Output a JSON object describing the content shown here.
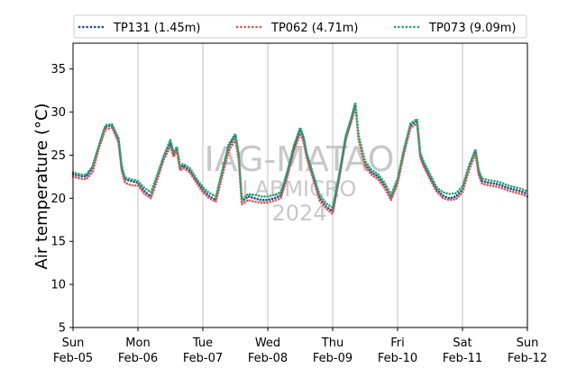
{
  "chart_data": {
    "type": "line",
    "title": "",
    "xlabel": "",
    "ylabel": "Air temperature (°C)",
    "ylim": [
      5,
      38
    ],
    "yticks": [
      5,
      10,
      15,
      20,
      25,
      30,
      35
    ],
    "xlim": [
      "2023-02-05",
      "2023-02-12"
    ],
    "xticks": [
      {
        "day": "Sun",
        "date": "Feb-05"
      },
      {
        "day": "Mon",
        "date": "Feb-06"
      },
      {
        "day": "Tue",
        "date": "Feb-07"
      },
      {
        "day": "Wed",
        "date": "Feb-08"
      },
      {
        "day": "Thu",
        "date": "Feb-09"
      },
      {
        "day": "Fri",
        "date": "Feb-10"
      },
      {
        "day": "Sat",
        "date": "Feb-11"
      },
      {
        "day": "Sun",
        "date": "Feb-12"
      }
    ],
    "grid": "x-major",
    "legend_position": "top",
    "x_unit": "days since Feb-05 00:00",
    "series": [
      {
        "name": "TP131 (1.45m)",
        "color": "#1f4e8c",
        "points": [
          [
            0,
            22.8
          ],
          [
            0.1,
            22.6
          ],
          [
            0.2,
            22.5
          ],
          [
            0.3,
            23.5
          ],
          [
            0.4,
            26.0
          ],
          [
            0.5,
            28.3
          ],
          [
            0.6,
            28.5
          ],
          [
            0.7,
            26.8
          ],
          [
            0.75,
            23.5
          ],
          [
            0.8,
            22.2
          ],
          [
            0.9,
            22.0
          ],
          [
            1.0,
            21.8
          ],
          [
            1.1,
            20.8
          ],
          [
            1.2,
            20.2
          ],
          [
            1.3,
            22.5
          ],
          [
            1.4,
            24.8
          ],
          [
            1.5,
            26.5
          ],
          [
            1.55,
            25.0
          ],
          [
            1.6,
            25.8
          ],
          [
            1.65,
            23.5
          ],
          [
            1.7,
            23.8
          ],
          [
            1.8,
            23.2
          ],
          [
            1.9,
            22.0
          ],
          [
            2.0,
            21.0
          ],
          [
            2.1,
            20.2
          ],
          [
            2.2,
            19.8
          ],
          [
            2.3,
            23.0
          ],
          [
            2.4,
            26.0
          ],
          [
            2.5,
            27.3
          ],
          [
            2.55,
            25.0
          ],
          [
            2.6,
            19.6
          ],
          [
            2.7,
            20.2
          ],
          [
            2.8,
            20.0
          ],
          [
            2.9,
            19.8
          ],
          [
            3.0,
            19.8
          ],
          [
            3.1,
            20.0
          ],
          [
            3.2,
            20.3
          ],
          [
            3.3,
            22.8
          ],
          [
            3.4,
            25.8
          ],
          [
            3.5,
            28.0
          ],
          [
            3.55,
            27.0
          ],
          [
            3.6,
            25.0
          ],
          [
            3.7,
            22.5
          ],
          [
            3.8,
            20.0
          ],
          [
            3.9,
            19.0
          ],
          [
            4.0,
            18.5
          ],
          [
            4.1,
            22.5
          ],
          [
            4.2,
            27.0
          ],
          [
            4.3,
            29.5
          ],
          [
            4.35,
            31.0
          ],
          [
            4.4,
            27.0
          ],
          [
            4.5,
            24.0
          ],
          [
            4.6,
            23.0
          ],
          [
            4.7,
            22.5
          ],
          [
            4.8,
            21.5
          ],
          [
            4.9,
            20.0
          ],
          [
            5.0,
            22.0
          ],
          [
            5.1,
            25.5
          ],
          [
            5.2,
            28.5
          ],
          [
            5.3,
            29.0
          ],
          [
            5.35,
            25.0
          ],
          [
            5.4,
            24.0
          ],
          [
            5.5,
            22.5
          ],
          [
            5.6,
            21.0
          ],
          [
            5.7,
            20.3
          ],
          [
            5.8,
            20.0
          ],
          [
            5.9,
            20.2
          ],
          [
            6.0,
            21.0
          ],
          [
            6.1,
            23.5
          ],
          [
            6.2,
            25.5
          ],
          [
            6.25,
            23.0
          ],
          [
            6.3,
            22.0
          ],
          [
            6.4,
            21.8
          ],
          [
            6.5,
            21.7
          ],
          [
            6.6,
            21.5
          ],
          [
            6.7,
            21.2
          ],
          [
            6.8,
            21.0
          ],
          [
            6.9,
            20.8
          ],
          [
            7.0,
            20.5
          ]
        ]
      },
      {
        "name": "TP062 (4.71m)",
        "color": "#d9585e",
        "points": [
          [
            0,
            22.5
          ],
          [
            0.1,
            22.3
          ],
          [
            0.2,
            22.2
          ],
          [
            0.3,
            23.0
          ],
          [
            0.4,
            25.8
          ],
          [
            0.5,
            28.0
          ],
          [
            0.6,
            28.2
          ],
          [
            0.7,
            26.5
          ],
          [
            0.75,
            23.2
          ],
          [
            0.8,
            21.8
          ],
          [
            0.9,
            21.5
          ],
          [
            1.0,
            21.5
          ],
          [
            1.1,
            20.5
          ],
          [
            1.2,
            20.0
          ],
          [
            1.3,
            22.2
          ],
          [
            1.4,
            24.5
          ],
          [
            1.5,
            26.0
          ],
          [
            1.55,
            24.8
          ],
          [
            1.6,
            25.5
          ],
          [
            1.65,
            23.2
          ],
          [
            1.7,
            23.5
          ],
          [
            1.8,
            23.0
          ],
          [
            1.9,
            21.8
          ],
          [
            2.0,
            20.7
          ],
          [
            2.1,
            20.0
          ],
          [
            2.2,
            19.6
          ],
          [
            2.3,
            22.6
          ],
          [
            2.4,
            25.5
          ],
          [
            2.5,
            26.8
          ],
          [
            2.55,
            24.5
          ],
          [
            2.6,
            19.3
          ],
          [
            2.7,
            19.8
          ],
          [
            2.8,
            19.6
          ],
          [
            2.9,
            19.5
          ],
          [
            3.0,
            19.5
          ],
          [
            3.1,
            19.7
          ],
          [
            3.2,
            20.0
          ],
          [
            3.3,
            22.4
          ],
          [
            3.4,
            25.4
          ],
          [
            3.5,
            27.5
          ],
          [
            3.55,
            26.5
          ],
          [
            3.6,
            24.7
          ],
          [
            3.7,
            22.2
          ],
          [
            3.8,
            19.7
          ],
          [
            3.9,
            18.8
          ],
          [
            4.0,
            18.2
          ],
          [
            4.1,
            22.2
          ],
          [
            4.2,
            26.7
          ],
          [
            4.3,
            29.2
          ],
          [
            4.35,
            30.6
          ],
          [
            4.4,
            26.7
          ],
          [
            4.5,
            23.7
          ],
          [
            4.6,
            22.7
          ],
          [
            4.7,
            22.2
          ],
          [
            4.8,
            21.2
          ],
          [
            4.9,
            19.8
          ],
          [
            5.0,
            21.7
          ],
          [
            5.1,
            25.2
          ],
          [
            5.2,
            28.2
          ],
          [
            5.3,
            28.7
          ],
          [
            5.35,
            24.7
          ],
          [
            5.4,
            23.7
          ],
          [
            5.5,
            22.2
          ],
          [
            5.6,
            20.8
          ],
          [
            5.7,
            20.0
          ],
          [
            5.8,
            19.8
          ],
          [
            5.9,
            19.9
          ],
          [
            6.0,
            20.7
          ],
          [
            6.1,
            23.2
          ],
          [
            6.2,
            25.2
          ],
          [
            6.25,
            22.7
          ],
          [
            6.3,
            21.7
          ],
          [
            6.4,
            21.5
          ],
          [
            6.5,
            21.4
          ],
          [
            6.6,
            21.2
          ],
          [
            6.7,
            20.9
          ],
          [
            6.8,
            20.7
          ],
          [
            6.9,
            20.5
          ],
          [
            7.0,
            20.2
          ]
        ]
      },
      {
        "name": "TP073 (9.09m)",
        "color": "#2ca86b",
        "points": [
          [
            0,
            23.0
          ],
          [
            0.1,
            22.8
          ],
          [
            0.2,
            22.7
          ],
          [
            0.3,
            23.7
          ],
          [
            0.4,
            26.2
          ],
          [
            0.5,
            28.5
          ],
          [
            0.6,
            28.6
          ],
          [
            0.7,
            27.0
          ],
          [
            0.75,
            23.8
          ],
          [
            0.8,
            22.4
          ],
          [
            0.9,
            22.2
          ],
          [
            1.0,
            22.0
          ],
          [
            1.1,
            21.2
          ],
          [
            1.2,
            20.7
          ],
          [
            1.3,
            22.8
          ],
          [
            1.4,
            25.0
          ],
          [
            1.5,
            26.8
          ],
          [
            1.55,
            25.3
          ],
          [
            1.6,
            26.0
          ],
          [
            1.65,
            23.8
          ],
          [
            1.7,
            24.0
          ],
          [
            1.8,
            23.5
          ],
          [
            1.9,
            22.3
          ],
          [
            2.0,
            21.3
          ],
          [
            2.1,
            20.6
          ],
          [
            2.2,
            20.2
          ],
          [
            2.3,
            23.3
          ],
          [
            2.4,
            26.3
          ],
          [
            2.5,
            27.5
          ],
          [
            2.55,
            25.3
          ],
          [
            2.6,
            19.9
          ],
          [
            2.7,
            20.5
          ],
          [
            2.8,
            20.4
          ],
          [
            2.9,
            20.2
          ],
          [
            3.0,
            20.2
          ],
          [
            3.1,
            20.4
          ],
          [
            3.2,
            20.7
          ],
          [
            3.3,
            23.1
          ],
          [
            3.4,
            26.1
          ],
          [
            3.5,
            28.2
          ],
          [
            3.55,
            27.2
          ],
          [
            3.6,
            25.3
          ],
          [
            3.7,
            22.8
          ],
          [
            3.8,
            20.4
          ],
          [
            3.9,
            19.4
          ],
          [
            4.0,
            18.9
          ],
          [
            4.1,
            22.8
          ],
          [
            4.2,
            27.2
          ],
          [
            4.3,
            29.7
          ],
          [
            4.35,
            31.1
          ],
          [
            4.4,
            27.3
          ],
          [
            4.5,
            24.3
          ],
          [
            4.6,
            23.3
          ],
          [
            4.7,
            22.8
          ],
          [
            4.8,
            21.8
          ],
          [
            4.9,
            20.4
          ],
          [
            5.0,
            22.3
          ],
          [
            5.1,
            25.8
          ],
          [
            5.2,
            28.7
          ],
          [
            5.3,
            29.2
          ],
          [
            5.35,
            25.3
          ],
          [
            5.4,
            24.3
          ],
          [
            5.5,
            22.8
          ],
          [
            5.6,
            21.3
          ],
          [
            5.7,
            20.7
          ],
          [
            5.8,
            20.5
          ],
          [
            5.9,
            20.6
          ],
          [
            6.0,
            21.4
          ],
          [
            6.1,
            23.8
          ],
          [
            6.2,
            25.7
          ],
          [
            6.25,
            23.3
          ],
          [
            6.3,
            22.3
          ],
          [
            6.4,
            22.1
          ],
          [
            6.5,
            22.0
          ],
          [
            6.6,
            21.8
          ],
          [
            6.7,
            21.5
          ],
          [
            6.8,
            21.3
          ],
          [
            6.9,
            21.1
          ],
          [
            7.0,
            20.8
          ]
        ]
      }
    ],
    "watermark": [
      "IAG-MATAO",
      "LABMICRO",
      "2024"
    ]
  }
}
